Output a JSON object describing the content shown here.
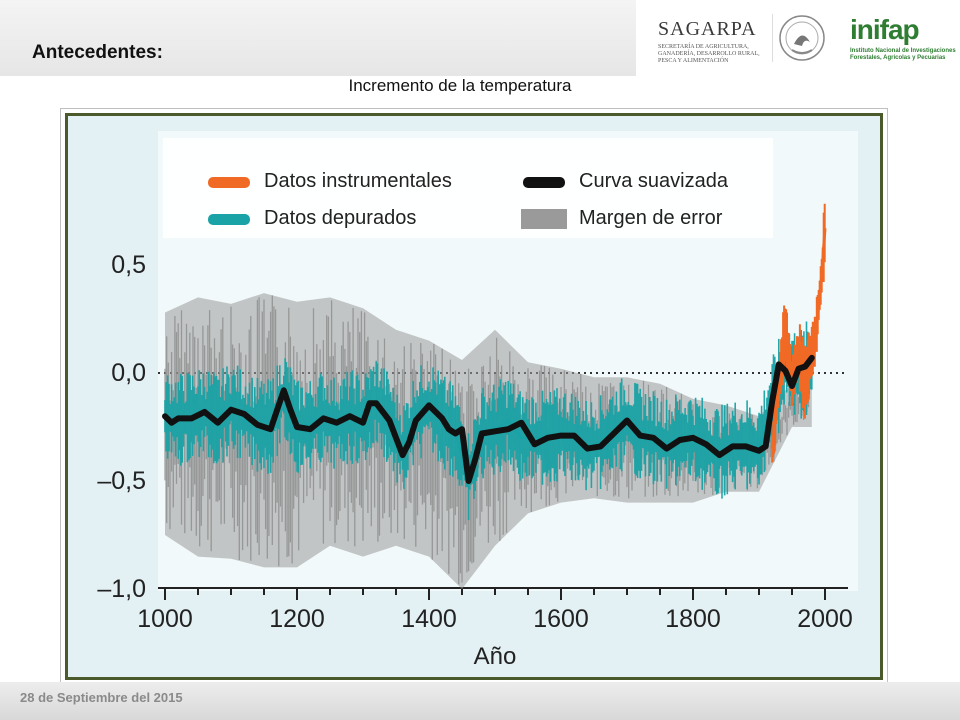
{
  "slide": {
    "section_title": "Antecedentes:",
    "chart_heading": "Incremento de la temperatura",
    "footer_date": "28 de Septiembre   del   2015"
  },
  "logos": {
    "sagarpa_name": "SAGARPA",
    "sagarpa_subtitle": "SECRETARÍA DE AGRICULTURA, GANADERÍA, DESARROLLO RURAL, PESCA Y ALIMENTACIÓN",
    "seal_icon": "mexico-coat-of-arms-icon",
    "inifap_name": "inifap",
    "inifap_subtitle": "Instituto Nacional de Investigaciones Forestales, Agrícolas y Pecuarias"
  },
  "colors": {
    "instrumental": "#f06a25",
    "proxy": "#1aa3a6",
    "smooth": "#111111",
    "error": "#9a9a9a",
    "frame": "#4a5a2a",
    "plot_bg": "#e3f1f4"
  },
  "chart_data": {
    "type": "line",
    "title": "",
    "xlabel": "Año",
    "ylabel": "",
    "xlim": [
      1000,
      2000
    ],
    "ylim": [
      -1.0,
      0.7
    ],
    "x_ticks": [
      {
        "value": 1000,
        "label": "1000"
      },
      {
        "value": 1200,
        "label": "1200"
      },
      {
        "value": 1400,
        "label": "1400"
      },
      {
        "value": 1600,
        "label": "1600"
      },
      {
        "value": 1800,
        "label": "1800"
      },
      {
        "value": 2000,
        "label": "2000"
      }
    ],
    "y_ticks": [
      {
        "value": 0.5,
        "label": "0,5"
      },
      {
        "value": 0.0,
        "label": "0,0"
      },
      {
        "value": -0.5,
        "label": "–0,5"
      },
      {
        "value": -1.0,
        "label": "–1,0"
      }
    ],
    "reference_line": {
      "y": 0.0,
      "style": "dotted"
    },
    "legend_placement": "top",
    "legend": [
      {
        "label": "Datos instrumentales",
        "color": "#f06a25"
      },
      {
        "label": "Curva suavizada",
        "color": "#111111"
      },
      {
        "label": "Datos depurados",
        "color": "#1aa3a6"
      },
      {
        "label": "Margen de error",
        "color": "#9a9a9a"
      }
    ],
    "series": [
      {
        "name": "Curva suavizada",
        "x": [
          1000,
          1010,
          1020,
          1040,
          1060,
          1080,
          1100,
          1120,
          1140,
          1160,
          1170,
          1180,
          1190,
          1200,
          1220,
          1240,
          1260,
          1280,
          1300,
          1310,
          1320,
          1340,
          1360,
          1370,
          1380,
          1400,
          1420,
          1430,
          1440,
          1450,
          1460,
          1470,
          1480,
          1500,
          1520,
          1540,
          1560,
          1580,
          1600,
          1620,
          1640,
          1660,
          1680,
          1700,
          1720,
          1740,
          1760,
          1780,
          1800,
          1820,
          1840,
          1860,
          1880,
          1900,
          1910,
          1920,
          1930,
          1940,
          1950,
          1960,
          1970,
          1980
        ],
        "y": [
          -0.2,
          -0.23,
          -0.21,
          -0.21,
          -0.18,
          -0.23,
          -0.17,
          -0.19,
          -0.24,
          -0.26,
          -0.17,
          -0.08,
          -0.17,
          -0.25,
          -0.26,
          -0.21,
          -0.23,
          -0.2,
          -0.23,
          -0.14,
          -0.14,
          -0.22,
          -0.38,
          -0.32,
          -0.22,
          -0.15,
          -0.21,
          -0.26,
          -0.28,
          -0.26,
          -0.5,
          -0.4,
          -0.28,
          -0.27,
          -0.26,
          -0.23,
          -0.33,
          -0.3,
          -0.29,
          -0.29,
          -0.35,
          -0.34,
          -0.28,
          -0.22,
          -0.29,
          -0.3,
          -0.35,
          -0.31,
          -0.3,
          -0.33,
          -0.38,
          -0.34,
          -0.34,
          -0.36,
          -0.34,
          -0.13,
          0.04,
          0.01,
          -0.06,
          0.02,
          0.03,
          0.07
        ]
      },
      {
        "name": "Datos instrumentales",
        "x": [
          1920,
          1930,
          1940,
          1950,
          1960,
          1970,
          1980,
          1985,
          1990,
          1995,
          2000
        ],
        "y": [
          -0.35,
          -0.05,
          0.2,
          -0.05,
          0.1,
          -0.05,
          0.1,
          0.15,
          0.3,
          0.45,
          0.67
        ]
      },
      {
        "name": "Datos depurados",
        "x": [
          1000,
          1020,
          1040,
          1060,
          1080,
          1100,
          1120,
          1140,
          1160,
          1180,
          1200,
          1220,
          1240,
          1260,
          1280,
          1300,
          1320,
          1340,
          1360,
          1380,
          1400,
          1420,
          1440,
          1460,
          1480,
          1500,
          1520,
          1540,
          1560,
          1580,
          1600,
          1620,
          1640,
          1660,
          1680,
          1700,
          1720,
          1740,
          1760,
          1780,
          1800,
          1820,
          1840,
          1860,
          1880,
          1900,
          1920,
          1940,
          1960,
          1980
        ],
        "y": [
          -0.2,
          -0.22,
          -0.2,
          -0.18,
          -0.22,
          -0.16,
          -0.2,
          -0.24,
          -0.25,
          -0.1,
          -0.25,
          -0.24,
          -0.2,
          -0.24,
          -0.2,
          -0.22,
          -0.13,
          -0.22,
          -0.36,
          -0.2,
          -0.15,
          -0.22,
          -0.28,
          -0.48,
          -0.28,
          -0.26,
          -0.22,
          -0.3,
          -0.3,
          -0.3,
          -0.28,
          -0.3,
          -0.34,
          -0.32,
          -0.27,
          -0.22,
          -0.28,
          -0.3,
          -0.33,
          -0.3,
          -0.3,
          -0.34,
          -0.37,
          -0.34,
          -0.33,
          -0.35,
          -0.15,
          0.03,
          -0.02,
          0.05
        ]
      },
      {
        "name": "Margen de error",
        "x": [
          1000,
          1050,
          1100,
          1150,
          1200,
          1250,
          1300,
          1350,
          1400,
          1450,
          1500,
          1550,
          1600,
          1650,
          1700,
          1750,
          1800,
          1850,
          1900,
          1950,
          1980
        ],
        "upper": [
          0.28,
          0.35,
          0.32,
          0.37,
          0.33,
          0.35,
          0.3,
          0.2,
          0.15,
          0.06,
          0.2,
          0.05,
          0.02,
          -0.02,
          -0.02,
          -0.05,
          -0.12,
          -0.15,
          -0.2,
          -0.05,
          0.05
        ],
        "lower": [
          -0.75,
          -0.85,
          -0.86,
          -0.9,
          -0.9,
          -0.8,
          -0.85,
          -0.8,
          -0.85,
          -1.0,
          -0.8,
          -0.65,
          -0.6,
          -0.58,
          -0.6,
          -0.6,
          -0.6,
          -0.55,
          -0.55,
          -0.25,
          -0.25
        ]
      }
    ]
  }
}
